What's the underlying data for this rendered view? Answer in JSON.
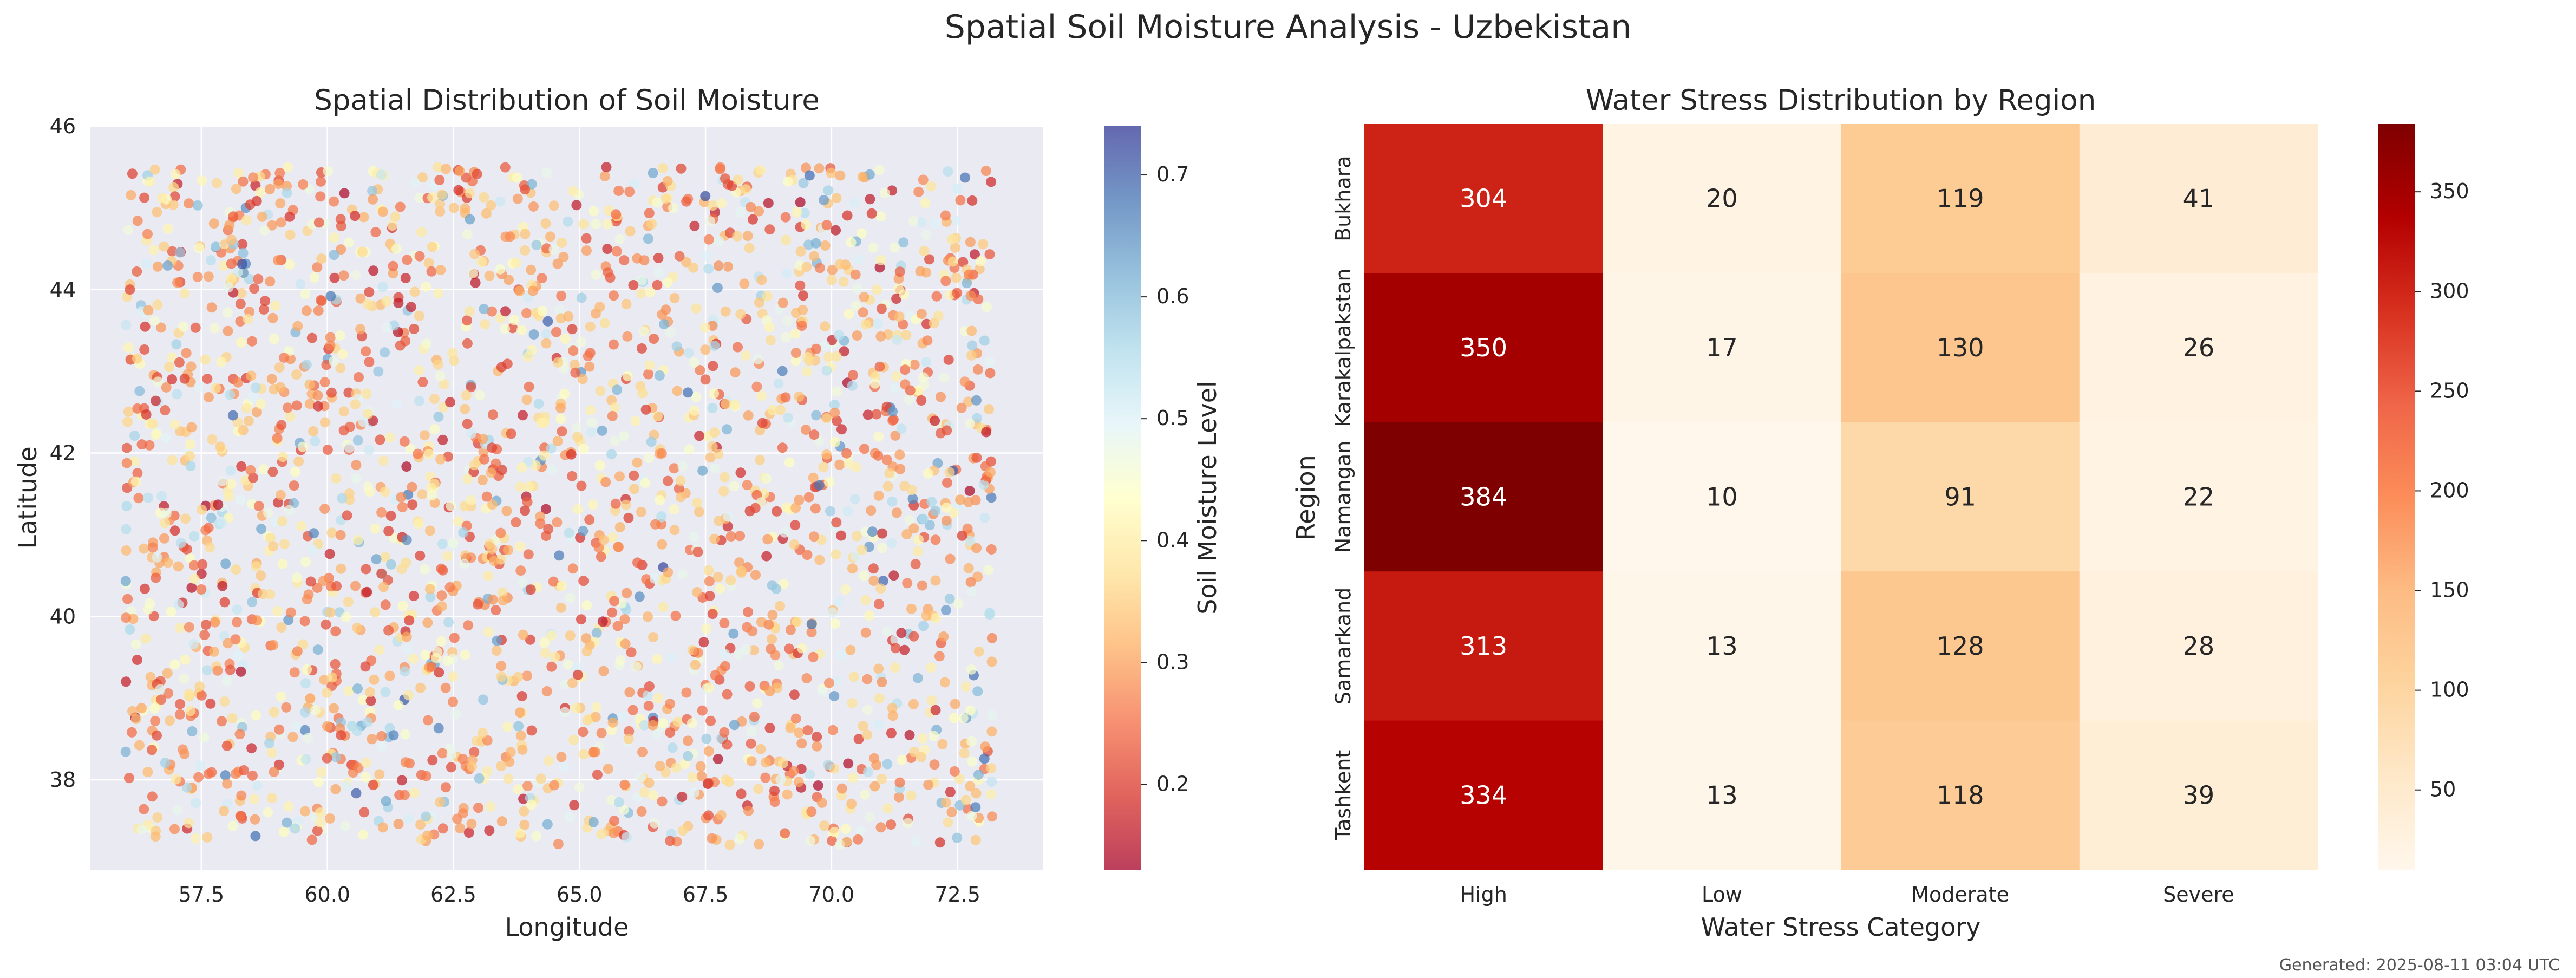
{
  "figure": {
    "suptitle": "Spatial Soil Moisture Analysis - Uzbekistan",
    "footer": "Generated: 2025-08-11 03:04 UTC"
  },
  "chart_data": [
    {
      "type": "scatter",
      "title": "Spatial Distribution of Soil Moisture",
      "xlabel": "Longitude",
      "ylabel": "Latitude",
      "xlim": [
        55.3,
        74.2
      ],
      "ylim": [
        36.9,
        46.0
      ],
      "xticks": [
        57.5,
        60.0,
        62.5,
        65.0,
        67.5,
        70.0,
        72.5
      ],
      "xtick_labels": [
        "57.5",
        "60.0",
        "62.5",
        "65.0",
        "67.5",
        "70.0",
        "72.5"
      ],
      "yticks": [
        38,
        40,
        42,
        44,
        46
      ],
      "ytick_labels": [
        "38",
        "40",
        "42",
        "44",
        "46"
      ],
      "grid": true,
      "colormap": "RdYlBu",
      "colorbar": {
        "label": "Soil Moisture Level",
        "range": [
          0.13,
          0.74
        ],
        "ticks": [
          0.2,
          0.3,
          0.4,
          0.5,
          0.6,
          0.7
        ],
        "tick_labels": [
          "0.2",
          "0.3",
          "0.4",
          "0.5",
          "0.6",
          "0.7"
        ]
      },
      "point_sampling": {
        "count": 2500,
        "lon_range": [
          56.0,
          73.2
        ],
        "lat_range": [
          37.2,
          45.5
        ],
        "moisture_range": [
          0.13,
          0.74
        ],
        "moisture_mode": 0.27
      }
    },
    {
      "type": "heatmap",
      "title": "Water Stress Distribution by Region",
      "xlabel": "Water Stress Category",
      "ylabel": "Region",
      "columns": [
        "High",
        "Low",
        "Moderate",
        "Severe"
      ],
      "rows": [
        "Bukhara",
        "Karakalpakstan",
        "Namangan",
        "Samarkand",
        "Tashkent"
      ],
      "values": [
        [
          304,
          20,
          119,
          41
        ],
        [
          350,
          17,
          130,
          26
        ],
        [
          384,
          10,
          91,
          22
        ],
        [
          313,
          13,
          128,
          28
        ],
        [
          334,
          13,
          118,
          39
        ]
      ],
      "colormap": "OrRd",
      "colorbar": {
        "range": [
          10,
          384
        ],
        "ticks": [
          50,
          100,
          150,
          200,
          250,
          300,
          350
        ],
        "tick_labels": [
          "50",
          "100",
          "150",
          "200",
          "250",
          "300",
          "350"
        ]
      }
    }
  ]
}
